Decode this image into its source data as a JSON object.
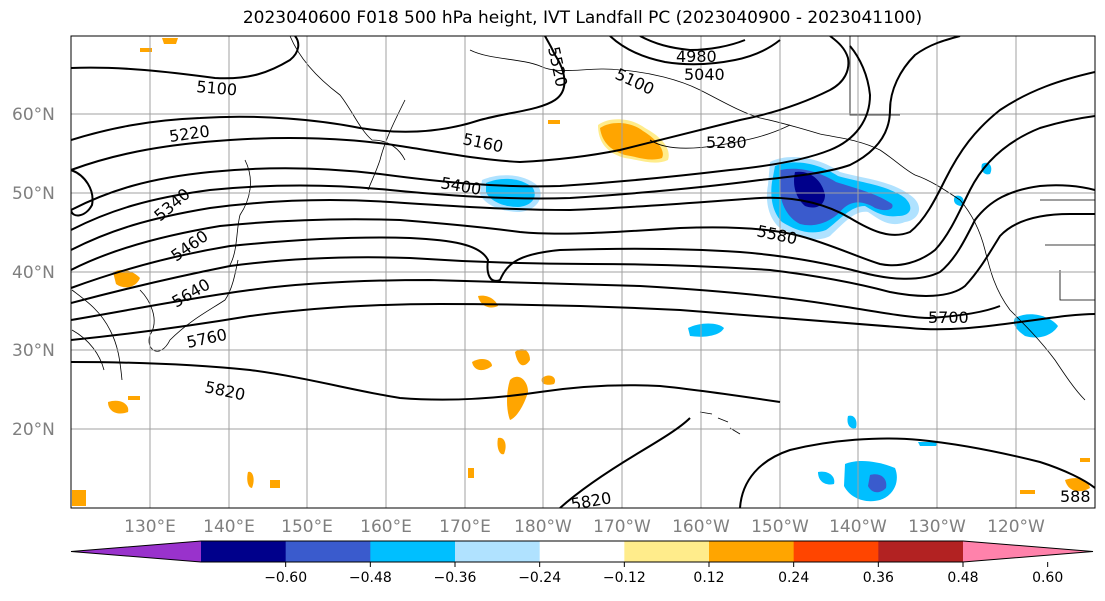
{
  "title": "2023040600 F018 500 hPa height, IVT Landfall PC (2023040900 - 2023041100)",
  "lat_labels": [
    "60°N",
    "50°N",
    "40°N",
    "30°N",
    "20°N"
  ],
  "lon_labels": [
    "130°E",
    "140°E",
    "150°E",
    "160°E",
    "170°E",
    "180°W",
    "170°W",
    "160°W",
    "150°W",
    "140°W",
    "130°W",
    "120°W"
  ],
  "contour_labels": [
    "5100",
    "5220",
    "5160",
    "5340",
    "5400",
    "5460",
    "5520",
    "5640",
    "5760",
    "5820",
    "5580",
    "5700",
    "4980",
    "5040",
    "5100",
    "5280",
    "5820",
    "588"
  ],
  "colorbar": {
    "ticks": [
      "−0.60",
      "−0.48",
      "−0.36",
      "−0.24",
      "−0.12",
      "0.12",
      "0.24",
      "0.36",
      "0.48",
      "0.60"
    ],
    "colors": [
      "#9932cc",
      "#00008b",
      "#3a5bcd",
      "#00bfff",
      "#b0e2ff",
      "#ffffff",
      "#ffec8b",
      "#ffa500",
      "#ff4500",
      "#b22222",
      "#ff82ab"
    ]
  },
  "colors": {
    "ocean_bg": "#ffffff",
    "grid": "#a0a0a0",
    "contour": "#000000"
  }
}
